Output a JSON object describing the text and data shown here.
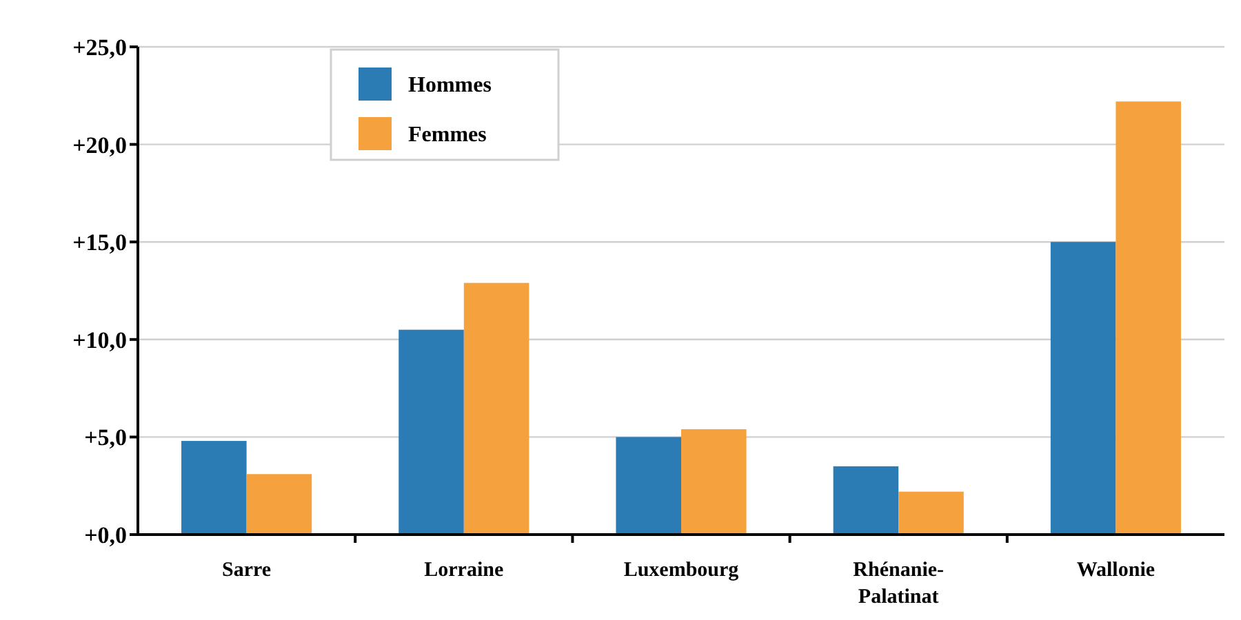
{
  "chart_data": {
    "type": "bar",
    "categories": [
      "Sarre",
      "Lorraine",
      "Luxembourg",
      "Rhénanie-\nPalatinat",
      "Wallonie"
    ],
    "series": [
      {
        "name": "Hommes",
        "color": "#2b7bb4",
        "values": [
          4.8,
          10.5,
          5.0,
          3.5,
          15.0
        ]
      },
      {
        "name": "Femmes",
        "color": "#f5a23e",
        "values": [
          3.1,
          12.9,
          5.4,
          2.2,
          22.2
        ]
      }
    ],
    "ylim": [
      0,
      25
    ],
    "yticks": [
      {
        "value": 0,
        "label": "+0,0"
      },
      {
        "value": 5,
        "label": "+5,0"
      },
      {
        "value": 10,
        "label": "+10,0"
      },
      {
        "value": 15,
        "label": "+15,0"
      },
      {
        "value": 20,
        "label": "+20,0"
      },
      {
        "value": 25,
        "label": "+25,0"
      }
    ],
    "grid": "y",
    "legend": "top left"
  }
}
